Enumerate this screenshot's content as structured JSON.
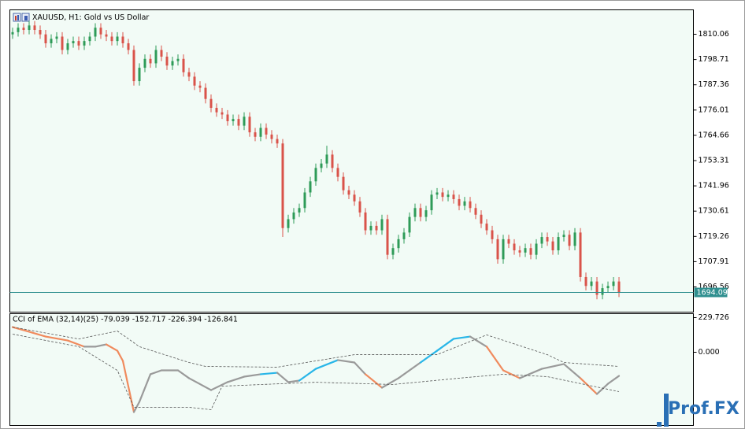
{
  "chart_data": [
    {
      "type": "candlestick",
      "title": "XAUUSD, H1:  Gold vs US Dollar",
      "categories": [
        null,
        null,
        null,
        null,
        null,
        null,
        null,
        null,
        null,
        null,
        null,
        null,
        null,
        null,
        null,
        null,
        null,
        null,
        null,
        null,
        null,
        null,
        null,
        null,
        null,
        null,
        null,
        null,
        null,
        null,
        null,
        null,
        null,
        null,
        null,
        null,
        null,
        null,
        null,
        null,
        null,
        null,
        null,
        null,
        null,
        null,
        null,
        null,
        null,
        null,
        null,
        null,
        null,
        null,
        null,
        null,
        null,
        null,
        null,
        null,
        null,
        null,
        null,
        null,
        null,
        null,
        null,
        null,
        null,
        null,
        null,
        null,
        null,
        null,
        null,
        null,
        null,
        null,
        null,
        null,
        null,
        null,
        null,
        null,
        null,
        null,
        null,
        null,
        null,
        null,
        null,
        null,
        null,
        null,
        null,
        null,
        null,
        null,
        null,
        null,
        null,
        null,
        null,
        null,
        null,
        null,
        null,
        null,
        null,
        null,
        null
      ],
      "open": [
        1810,
        1811,
        1813,
        1812,
        1814,
        1812,
        1810,
        1806,
        1808,
        1809,
        1803,
        1806,
        1807,
        1805,
        1807,
        1809,
        1813,
        1810,
        1809,
        1807,
        1809,
        1806,
        1803,
        1789,
        1795,
        1799,
        1797,
        1803,
        1800,
        1796,
        1798,
        1799,
        1793,
        1791,
        1787,
        1786,
        1781,
        1777,
        1775,
        1774,
        1771,
        1772,
        1769,
        1773,
        1766,
        1764,
        1768,
        1765,
        1763,
        1761,
        1723,
        1727,
        1730,
        1732,
        1739,
        1744,
        1750,
        1752,
        1756,
        1750,
        1746,
        1740,
        1738,
        1735,
        1730,
        1722,
        1724,
        1722,
        1727,
        1711,
        1714,
        1718,
        1721,
        1728,
        1732,
        1728,
        1731,
        1738,
        1739,
        1737,
        1738,
        1736,
        1733,
        1735,
        1732,
        1729,
        1725,
        1722,
        1718,
        1709,
        1718,
        1716,
        1713,
        1712,
        1714,
        1711,
        1716,
        1719,
        1717,
        1713,
        1719,
        1720,
        1715,
        1721,
        1701,
        1697,
        1699,
        1693,
        1696,
        1697,
        1699
      ],
      "high": [
        1813,
        1815,
        1815,
        1816,
        1816,
        1814,
        1812,
        1810,
        1811,
        1811,
        1808,
        1809,
        1809,
        1809,
        1811,
        1815,
        1815,
        1812,
        1811,
        1811,
        1811,
        1808,
        1805,
        1797,
        1801,
        1801,
        1805,
        1805,
        1802,
        1800,
        1801,
        1801,
        1795,
        1793,
        1789,
        1788,
        1783,
        1779,
        1777,
        1776,
        1774,
        1774,
        1775,
        1775,
        1768,
        1770,
        1770,
        1767,
        1765,
        1763,
        1729,
        1732,
        1734,
        1741,
        1746,
        1752,
        1754,
        1760,
        1758,
        1752,
        1748,
        1742,
        1740,
        1737,
        1732,
        1726,
        1726,
        1729,
        1729,
        1716,
        1720,
        1723,
        1730,
        1734,
        1734,
        1733,
        1740,
        1741,
        1741,
        1740,
        1740,
        1738,
        1737,
        1737,
        1734,
        1731,
        1727,
        1724,
        1720,
        1720,
        1720,
        1718,
        1715,
        1716,
        1716,
        1718,
        1721,
        1721,
        1719,
        1721,
        1722,
        1722,
        1723,
        1723,
        1703,
        1701,
        1701,
        1698,
        1699,
        1701,
        1701
      ],
      "low": [
        1808,
        1809,
        1810,
        1810,
        1810,
        1808,
        1804,
        1804,
        1806,
        1801,
        1801,
        1804,
        1803,
        1803,
        1805,
        1807,
        1808,
        1807,
        1805,
        1805,
        1804,
        1801,
        1787,
        1787,
        1793,
        1795,
        1795,
        1798,
        1794,
        1794,
        1796,
        1791,
        1789,
        1785,
        1784,
        1779,
        1775,
        1773,
        1772,
        1769,
        1769,
        1767,
        1767,
        1764,
        1762,
        1762,
        1763,
        1761,
        1759,
        1719,
        1721,
        1725,
        1728,
        1730,
        1737,
        1742,
        1748,
        1750,
        1748,
        1744,
        1738,
        1736,
        1733,
        1728,
        1720,
        1720,
        1720,
        1720,
        1709,
        1709,
        1712,
        1716,
        1719,
        1726,
        1726,
        1726,
        1729,
        1736,
        1735,
        1735,
        1734,
        1731,
        1731,
        1730,
        1727,
        1723,
        1720,
        1716,
        1707,
        1707,
        1714,
        1711,
        1710,
        1710,
        1709,
        1709,
        1714,
        1715,
        1711,
        1711,
        1717,
        1713,
        1713,
        1699,
        1695,
        1695,
        1691,
        1691,
        1694,
        1695,
        1692
      ],
      "close": [
        1811,
        1813,
        1812,
        1814,
        1812,
        1810,
        1806,
        1808,
        1809,
        1803,
        1806,
        1807,
        1805,
        1807,
        1809,
        1813,
        1810,
        1809,
        1807,
        1809,
        1806,
        1803,
        1789,
        1795,
        1799,
        1797,
        1803,
        1800,
        1796,
        1798,
        1799,
        1793,
        1791,
        1787,
        1786,
        1781,
        1777,
        1775,
        1774,
        1771,
        1772,
        1769,
        1773,
        1766,
        1764,
        1768,
        1765,
        1763,
        1761,
        1723,
        1727,
        1730,
        1732,
        1739,
        1744,
        1750,
        1752,
        1756,
        1750,
        1746,
        1740,
        1738,
        1735,
        1730,
        1722,
        1724,
        1722,
        1727,
        1711,
        1714,
        1718,
        1721,
        1728,
        1732,
        1728,
        1731,
        1738,
        1739,
        1737,
        1738,
        1736,
        1733,
        1735,
        1732,
        1729,
        1725,
        1722,
        1718,
        1709,
        1718,
        1716,
        1713,
        1712,
        1714,
        1711,
        1716,
        1719,
        1717,
        1713,
        1719,
        1720,
        1715,
        1721,
        1701,
        1697,
        1699,
        1693,
        1696,
        1697,
        1699,
        1694
      ],
      "up_color": "#2e9b58",
      "down_color": "#d9534a",
      "xlim": [
        -0.5,
        123.5
      ],
      "ylim": [
        1685.25,
        1821.02
      ],
      "yticks": [
        1810.06,
        1798.71,
        1787.36,
        1776.01,
        1764.66,
        1753.31,
        1741.96,
        1730.61,
        1719.26,
        1707.91,
        1696.56
      ],
      "last_price": 1694.09,
      "last_price_color": "#2f8f8f"
    },
    {
      "type": "line",
      "title": "CCI of EMA (32,14)(25) -79.039 -152.717 -226.394 -126.841",
      "xlim": [
        -0.5,
        123.5
      ],
      "ylim": [
        -485.6,
        255.8
      ],
      "yticks": [
        229.726,
        {
          "value": 0,
          "label": "0.000"
        }
      ],
      "series": [
        {
          "x": [
            0,
            2.5,
            6,
            10,
            13,
            15,
            17,
            19,
            20,
            22,
            23,
            25,
            27,
            30,
            32,
            36,
            39,
            42,
            45,
            48,
            50,
            52,
            55,
            59,
            62,
            64,
            67,
            70,
            74,
            77,
            80,
            83,
            86,
            89,
            92,
            96,
            100,
            103,
            106,
            108,
            110
          ],
          "values": [
            167,
            141,
            104,
            78,
            37,
            37,
            52,
            10,
            -57,
            -397,
            -329,
            -146,
            -120,
            -120,
            -172,
            -251,
            -198,
            -162,
            -146,
            -136,
            -198,
            -188,
            -110,
            -52,
            -68,
            -146,
            -235,
            -172,
            -68,
            10,
            89,
            104,
            37,
            -120,
            -172,
            -110,
            -78,
            -172,
            -277,
            -209,
            -157
          ],
          "colors": [
            "#f08a5d",
            "#f08a5d",
            "#f08a5d",
            "#f08a5d",
            "#9a9a9a",
            "#9a9a9a",
            "#f08a5d",
            "#f08a5d",
            "#f08a5d",
            "#9a9a9a",
            "#9a9a9a",
            "#9a9a9a",
            "#9a9a9a",
            "#9a9a9a",
            "#9a9a9a",
            "#9a9a9a",
            "#9a9a9a",
            "#9a9a9a",
            "#29b6e8",
            "#9a9a9a",
            "#9a9a9a",
            "#29b6e8",
            "#29b6e8",
            "#9a9a9a",
            "#9a9a9a",
            "#f08a5d",
            "#9a9a9a",
            "#9a9a9a",
            "#29b6e8",
            "#29b6e8",
            "#29b6e8",
            "#9a9a9a",
            "#f08a5d",
            "#f08a5d",
            "#9a9a9a",
            "#9a9a9a",
            "#9a9a9a",
            "#f08a5d",
            "#9a9a9a",
            "#9a9a9a",
            "#9a9a9a"
          ],
          "width": 2.2
        },
        {
          "x": [
            0,
            12,
            19,
            23,
            32,
            35,
            48,
            62,
            77,
            86,
            97,
            100,
            110
          ],
          "values": [
            167,
            88,
            141,
            37,
            -68,
            -94,
            -99,
            -16,
            -16,
            115,
            -16,
            -68,
            -94
          ],
          "color": "#555555",
          "dashed": true,
          "width": 0.8
        },
        {
          "x": [
            0,
            12,
            19,
            22,
            32,
            36,
            38,
            55,
            69,
            81,
            89,
            97,
            110
          ],
          "values": [
            120,
            37,
            -120,
            -365,
            -365,
            -381,
            -225,
            -199,
            -214,
            -172,
            -146,
            -162,
            -261
          ],
          "color": "#555555",
          "dashed": true,
          "width": 0.8
        }
      ]
    }
  ],
  "watermark": "Prof.FX"
}
